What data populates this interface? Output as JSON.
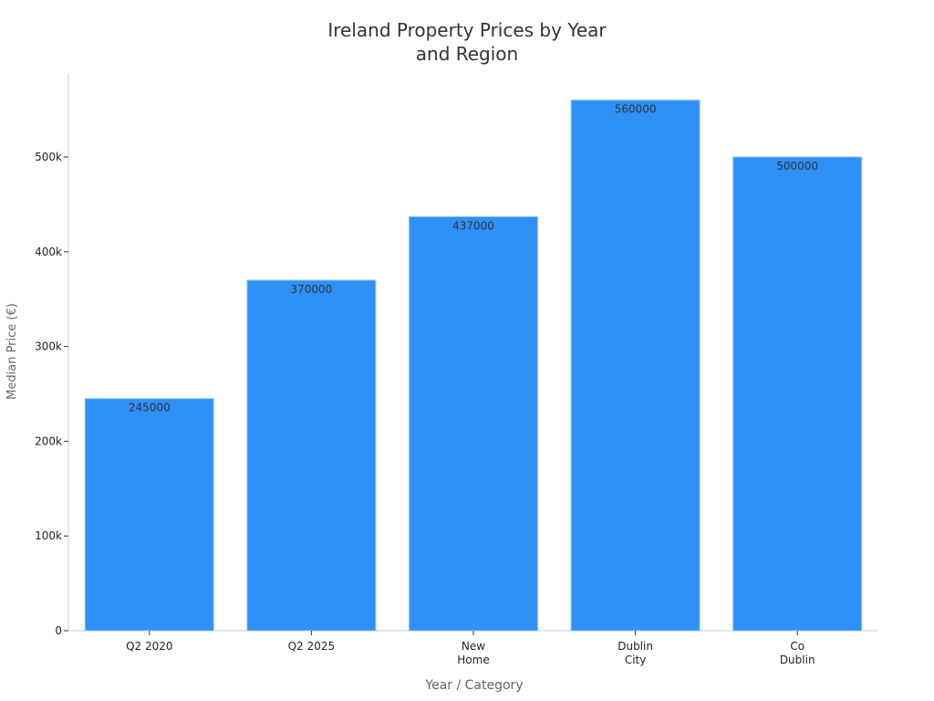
{
  "chart_data": {
    "type": "bar",
    "title": "Ireland Property Prices by Year and Region",
    "title_lines": [
      "Ireland Property Prices by Year",
      "and Region"
    ],
    "xlabel": "Year / Category",
    "ylabel": "Median Price (€)",
    "categories": [
      "Q2 2020",
      "Q2 2025",
      "New Home",
      "Dublin City",
      "Co Dublin"
    ],
    "category_lines": [
      [
        "Q2 2020"
      ],
      [
        "Q2 2025"
      ],
      [
        "New",
        "Home"
      ],
      [
        "Dublin",
        "City"
      ],
      [
        "Co",
        "Dublin"
      ]
    ],
    "values": [
      245000,
      370000,
      437000,
      560000,
      500000
    ],
    "data_labels": [
      "245000",
      "370000",
      "437000",
      "560000",
      "500000"
    ],
    "yticks": [
      0,
      100000,
      200000,
      300000,
      400000,
      500000
    ],
    "ytick_labels": [
      "0",
      "100k",
      "200k",
      "300k",
      "400k",
      "500k"
    ],
    "ylim": [
      0,
      590000
    ],
    "grid": false,
    "bar_color": "#2f91f8"
  }
}
